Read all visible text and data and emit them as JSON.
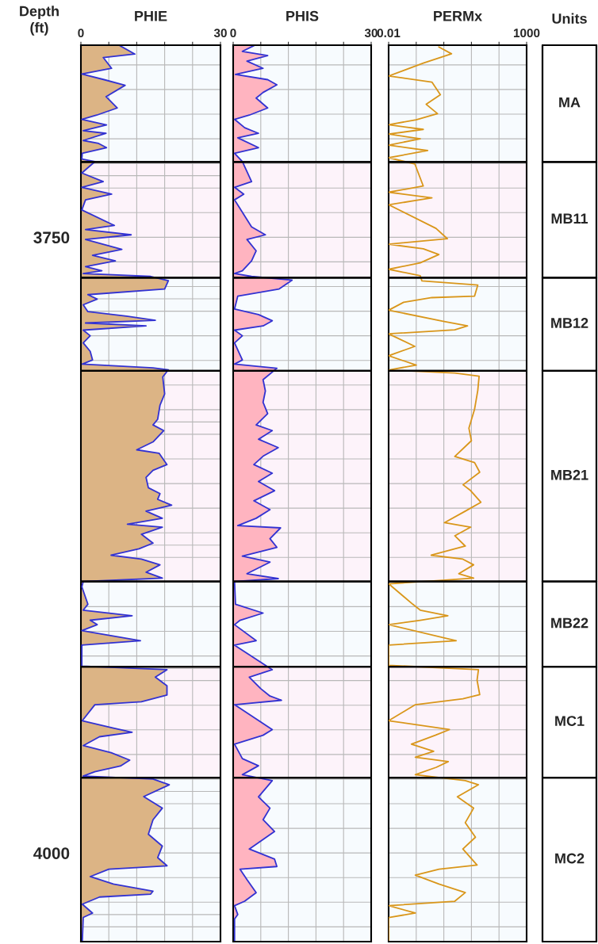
{
  "chart_data": [
    {
      "type": "area",
      "title": "PHIE",
      "ylabel": "Depth\n(ft)",
      "orientation": "horizontal",
      "xlim": [
        0,
        30
      ],
      "ylim": [
        4036,
        3672
      ],
      "grid": true,
      "xticks": [
        0,
        {
          "value": 6,
          "label": null
        },
        {
          "value": 12,
          "label": null
        },
        {
          "value": 18,
          "label": null
        },
        {
          "value": 24,
          "label": null
        },
        30
      ],
      "yticks": [
        {
          "value": 3680,
          "label": null
        },
        {
          "value": 3690,
          "label": null
        },
        {
          "value": 3700,
          "label": null
        },
        {
          "value": 3710,
          "label": null
        },
        {
          "value": 3720,
          "label": null
        },
        {
          "value": 3725,
          "label": null
        },
        {
          "value": 3730,
          "label": null
        },
        {
          "value": 3740,
          "label": null
        },
        3750,
        {
          "value": 3760,
          "label": null
        },
        {
          "value": 3770,
          "label": null
        },
        {
          "value": 3775,
          "label": null
        },
        {
          "value": 3780,
          "label": null
        },
        {
          "value": 3790,
          "label": null
        },
        {
          "value": 3800,
          "label": null
        },
        {
          "value": 3810,
          "label": null
        },
        {
          "value": 3820,
          "label": null
        },
        {
          "value": 3825,
          "label": null
        },
        {
          "value": 3830,
          "label": null
        },
        {
          "value": 3840,
          "label": null
        },
        {
          "value": 3850,
          "label": null
        },
        {
          "value": 3860,
          "label": null
        },
        {
          "value": 3870,
          "label": null
        },
        {
          "value": 3875,
          "label": null
        },
        {
          "value": 3880,
          "label": null
        },
        {
          "value": 3890,
          "label": null
        },
        {
          "value": 3900,
          "label": null
        },
        {
          "value": 3910,
          "label": null
        },
        {
          "value": 3920,
          "label": null
        },
        {
          "value": 3925,
          "label": null
        },
        {
          "value": 3930,
          "label": null
        },
        {
          "value": 3940,
          "label": null
        },
        {
          "value": 3950,
          "label": null
        },
        {
          "value": 3960,
          "label": null
        },
        {
          "value": 3970,
          "label": null
        },
        {
          "value": 3975,
          "label": null
        },
        {
          "value": 3980,
          "label": null
        },
        {
          "value": 3990,
          "label": null
        },
        4000,
        {
          "value": 4010,
          "label": null
        },
        {
          "value": 4020,
          "label": null
        },
        {
          "value": 4025,
          "label": null
        },
        {
          "value": 4030,
          "label": null
        }
      ],
      "bands": [
        {
          "axis": "y",
          "from": 3672,
          "to": 3719.4,
          "color": "#f7fbfe"
        },
        {
          "axis": "y",
          "from": 3719.4,
          "to": 3766.4,
          "color": "#fdf3fa"
        },
        {
          "axis": "y",
          "from": 3766.4,
          "to": 3804.2,
          "color": "#f7fbfe"
        },
        {
          "axis": "y",
          "from": 3804.2,
          "to": 3889.8,
          "color": "#fdf3fa"
        },
        {
          "axis": "y",
          "from": 3889.8,
          "to": 3924.4,
          "color": "#f7fbfe"
        },
        {
          "axis": "y",
          "from": 3924.4,
          "to": 3969.4,
          "color": "#fdf3fa"
        },
        {
          "axis": "y",
          "from": 3969.4,
          "to": 4036,
          "color": "#f7fbfe"
        }
      ],
      "x": [
        3672.2,
        3675.6,
        3677.0,
        3681.4,
        3683.7,
        3686.0,
        3688.3,
        3692.9,
        3697.5,
        3700.4,
        3702.1,
        3704.4,
        3706.7,
        3707.8,
        3710.7,
        3711.9,
        3713.6,
        3715.9,
        3718.2,
        3719.3,
        3723.9,
        3727.4,
        3729.7,
        3732.5,
        3734.8,
        3738.9,
        3745.2,
        3746.9,
        3749.0,
        3750.9,
        3754.9,
        3757.3,
        3759.6,
        3761.9,
        3763.6,
        3764.7,
        3765.9,
        3767.6,
        3771.0,
        3773.3,
        3775.1,
        3777.4,
        3780.2,
        3782.0,
        3783.7,
        3784.8,
        3786.0,
        3787.7,
        3790.0,
        3792.9,
        3796.3,
        3799.8,
        3801.5,
        3803.0,
        3803.8,
        3806.7,
        3813.6,
        3818.2,
        3823.9,
        3826.2,
        3828.5,
        3833.1,
        3836.3,
        3837.7,
        3842.3,
        3844.6,
        3847.5,
        3851.7,
        3854.1,
        3856.4,
        3858.8,
        3861.2,
        3864.1,
        3866.5,
        3867.7,
        3870.6,
        3874.2,
        3876.5,
        3879.1,
        3880.7,
        3883.0,
        3886.0,
        3888.4,
        3889.8,
        3891.9,
        3899.0,
        3901.4,
        3903.7,
        3905.5,
        3907.3,
        3909.7,
        3913.8,
        3915.6,
        3924.1,
        3925.6,
        3928.6,
        3932.1,
        3935.9,
        3938.6,
        3939.8,
        3946.3,
        3949.3,
        3951.0,
        3952.8,
        3956.4,
        3959.3,
        3962.3,
        3964.7,
        3967.0,
        3968.8,
        3970.0,
        3972.3,
        3977.1,
        3981.8,
        3986.5,
        3992.4,
        3997.2,
        4001.9,
        4005.2,
        4006.6,
        4009.6,
        4012.6,
        4015.5,
        4016.7,
        4017.9,
        4020.8,
        4024.4,
        4026.2,
        4036.0
      ],
      "series": [
        {
          "color": "#dcb485",
          "values": [
            8.4,
            11.6,
            4.8,
            6.6,
            0.2,
            5.0,
            9.5,
            5.4,
            7.8,
            3.4,
            0.2,
            5.5,
            0.5,
            5.4,
            0.5,
            3.8,
            5.5,
            0.3,
            0.2,
            3.0,
            0.2,
            4.8,
            0.2,
            6.6,
            1.0,
            0.2,
            7.2,
            1.0,
            10.8,
            1.0,
            8.8,
            2.5,
            7.4,
            1.0,
            4.5,
            0.5,
            15.0,
            18.8,
            18.0,
            1.5,
            3.5,
            0.5,
            1.5,
            9.8,
            16.0,
            1.0,
            14.0,
            0.5,
            2.0,
            0.5,
            2.0,
            2.5,
            0.3,
            15.5,
            18.8,
            17.6,
            18.0,
            17.0,
            16.5,
            15.5,
            17.8,
            15.5,
            12.0,
            16.8,
            18.5,
            15.5,
            14.0,
            14.5,
            17.0,
            16.5,
            19.5,
            14.0,
            17.5,
            10.0,
            17.5,
            13.0,
            15.5,
            12.5,
            6.5,
            13.0,
            17.0,
            14.0,
            17.5,
            0.5,
            0.2,
            1.5,
            0.5,
            11.0,
            2.0,
            3.5,
            0.2,
            12.8,
            0.2,
            0.2,
            18.5,
            16.0,
            18.5,
            18.5,
            13.0,
            3.0,
            0.3,
            7.0,
            11.0,
            4.0,
            0.5,
            6.5,
            10.5,
            8.5,
            3.0,
            0.5,
            15.5,
            19.0,
            13.5,
            17.5,
            15.5,
            14.5,
            17.5,
            16.5,
            18.5,
            6.0,
            2.0,
            7.0,
            15.5,
            15.0,
            4.0,
            0.3,
            2.5,
            0.5,
            0.3
          ]
        },
        {
          "type": "line",
          "color": "#3232d2",
          "values": [
            8.4,
            11.6,
            4.8,
            6.6,
            0.2,
            5.0,
            9.5,
            5.4,
            7.8,
            3.4,
            0.2,
            5.5,
            0.5,
            5.4,
            0.5,
            3.8,
            5.5,
            0.3,
            0.2,
            3.0,
            0.2,
            4.8,
            0.2,
            6.6,
            1.0,
            0.2,
            7.2,
            1.0,
            10.8,
            1.0,
            8.8,
            2.5,
            7.4,
            1.0,
            4.5,
            0.5,
            15.0,
            18.8,
            18.0,
            1.5,
            3.5,
            0.5,
            1.5,
            9.8,
            16.0,
            1.0,
            14.0,
            0.5,
            2.0,
            0.5,
            2.0,
            2.5,
            0.3,
            15.5,
            18.8,
            17.6,
            18.0,
            17.0,
            16.5,
            15.5,
            17.8,
            15.5,
            12.0,
            16.8,
            18.5,
            15.5,
            14.0,
            14.5,
            17.0,
            16.5,
            19.5,
            14.0,
            17.5,
            10.0,
            17.5,
            13.0,
            15.5,
            12.5,
            6.5,
            13.0,
            17.0,
            14.0,
            17.5,
            0.5,
            0.2,
            1.5,
            0.5,
            11.0,
            2.0,
            3.5,
            0.2,
            12.8,
            0.2,
            0.2,
            18.5,
            16.0,
            18.5,
            18.5,
            13.0,
            3.0,
            0.3,
            7.0,
            11.0,
            4.0,
            0.5,
            6.5,
            10.5,
            8.5,
            3.0,
            0.5,
            15.5,
            19.0,
            13.5,
            17.5,
            15.5,
            14.5,
            17.5,
            16.5,
            18.5,
            6.0,
            2.0,
            7.0,
            15.5,
            15.0,
            4.0,
            0.3,
            2.5,
            0.5,
            0.3
          ]
        }
      ]
    },
    {
      "type": "area",
      "title": "PHIS",
      "orientation": "horizontal",
      "xlim": [
        0,
        30
      ],
      "ylim": [
        4036,
        3672
      ],
      "grid": true,
      "tick_labels": "x",
      "xticks": [
        0,
        {
          "value": 6,
          "label": null
        },
        {
          "value": 12,
          "label": null
        },
        {
          "value": 18,
          "label": null
        },
        {
          "value": 24,
          "label": null
        },
        30
      ],
      "yticks": [
        {
          "value": 3680,
          "label": null
        },
        {
          "value": 3690,
          "label": null
        },
        {
          "value": 3700,
          "label": null
        },
        {
          "value": 3710,
          "label": null
        },
        {
          "value": 3720,
          "label": null
        },
        {
          "value": 3730,
          "label": null
        },
        {
          "value": 3740,
          "label": null
        },
        {
          "value": 3750,
          "label": null
        },
        {
          "value": 3760,
          "label": null
        },
        {
          "value": 3770,
          "label": null
        },
        {
          "value": 3780,
          "label": null
        },
        {
          "value": 3790,
          "label": null
        },
        {
          "value": 3800,
          "label": null
        },
        {
          "value": 3810,
          "label": null
        },
        {
          "value": 3820,
          "label": null
        },
        {
          "value": 3830,
          "label": null
        },
        {
          "value": 3840,
          "label": null
        },
        {
          "value": 3850,
          "label": null
        },
        {
          "value": 3860,
          "label": null
        },
        {
          "value": 3870,
          "label": null
        },
        {
          "value": 3880,
          "label": null
        },
        {
          "value": 3890,
          "label": null
        },
        {
          "value": 3900,
          "label": null
        },
        {
          "value": 3910,
          "label": null
        },
        {
          "value": 3920,
          "label": null
        },
        {
          "value": 3930,
          "label": null
        },
        {
          "value": 3940,
          "label": null
        },
        {
          "value": 3950,
          "label": null
        },
        {
          "value": 3960,
          "label": null
        },
        {
          "value": 3970,
          "label": null
        },
        {
          "value": 3980,
          "label": null
        },
        {
          "value": 3990,
          "label": null
        },
        {
          "value": 4000,
          "label": null
        },
        {
          "value": 4010,
          "label": null
        },
        {
          "value": 4020,
          "label": null
        },
        {
          "value": 4030,
          "label": null
        }
      ],
      "bands": [
        {
          "axis": "y",
          "from": 3672,
          "to": 3719.4,
          "color": "#f7fbfe"
        },
        {
          "axis": "y",
          "from": 3719.4,
          "to": 3766.4,
          "color": "#fdf3fa"
        },
        {
          "axis": "y",
          "from": 3766.4,
          "to": 3804.2,
          "color": "#f7fbfe"
        },
        {
          "axis": "y",
          "from": 3804.2,
          "to": 3889.8,
          "color": "#fdf3fa"
        },
        {
          "axis": "y",
          "from": 3889.8,
          "to": 3924.4,
          "color": "#f7fbfe"
        },
        {
          "axis": "y",
          "from": 3924.4,
          "to": 3969.4,
          "color": "#fdf3fa"
        },
        {
          "axis": "y",
          "from": 3969.4,
          "to": 4036,
          "color": "#f7fbfe"
        }
      ],
      "x": [
        3672.2,
        3674.5,
        3676.2,
        3678.5,
        3681.4,
        3683.9,
        3686.0,
        3688.1,
        3691.2,
        3693.5,
        3697.5,
        3700.4,
        3702.1,
        3705.5,
        3707.8,
        3709.6,
        3713.6,
        3715.9,
        3719.3,
        3727.4,
        3729.7,
        3732.5,
        3734.8,
        3745.8,
        3749.0,
        3750.9,
        3755.5,
        3759.6,
        3763.6,
        3764.7,
        3765.9,
        3767.4,
        3771.0,
        3773.9,
        3779.1,
        3781.4,
        3783.9,
        3786.0,
        3787.7,
        3790.0,
        3792.9,
        3799.8,
        3801.5,
        3803.2,
        3807.8,
        3812.4,
        3817.0,
        3821.6,
        3826.2,
        3828.5,
        3832.0,
        3835.4,
        3838.9,
        3842.3,
        3845.8,
        3849.2,
        3852.9,
        3857.0,
        3860.6,
        3864.1,
        3867.1,
        3868.0,
        3872.4,
        3875.9,
        3879.5,
        3881.9,
        3886.6,
        3888.6,
        3889.8,
        3899.0,
        3902.6,
        3905.5,
        3907.3,
        3913.8,
        3915.6,
        3925.6,
        3928.6,
        3933.3,
        3936.3,
        3938.0,
        3939.8,
        3949.9,
        3952.2,
        3955.8,
        3961.7,
        3964.6,
        3968.2,
        3970.6,
        3977.2,
        3981.8,
        3986.5,
        3991.3,
        3998.4,
        4002.5,
        4005.5,
        4006.6,
        4010.8,
        4016.1,
        4019.6,
        4021.4,
        4025.0,
        4026.8,
        4036.0
      ],
      "series": [
        {
          "color": "#ffb4c0",
          "values": [
            4.5,
            2.0,
            7.5,
            3.0,
            6.5,
            0.5,
            7.5,
            9.5,
            6.5,
            5.0,
            7.5,
            3.5,
            0.3,
            2.5,
            5.5,
            1.0,
            5.5,
            0.3,
            2.0,
            4.0,
            0.3,
            2.3,
            0.3,
            4.0,
            7.0,
            3.0,
            5.0,
            4.0,
            2.0,
            0.3,
            4.0,
            12.8,
            10.0,
            1.0,
            0.3,
            5.5,
            8.5,
            6.5,
            0.3,
            2.0,
            0.3,
            2.0,
            0.3,
            9.5,
            6.5,
            7.0,
            6.5,
            7.5,
            5.0,
            8.5,
            5.5,
            9.8,
            6.5,
            4.5,
            8.5,
            5.5,
            9.0,
            4.5,
            8.0,
            5.0,
            1.0,
            10.3,
            8.0,
            9.5,
            2.0,
            8.0,
            3.0,
            9.8,
            0.3,
            0.5,
            6.5,
            1.5,
            0.3,
            5.0,
            0.3,
            8.5,
            3.5,
            6.0,
            8.0,
            10.5,
            0.3,
            8.5,
            6.5,
            0.3,
            2.0,
            5.5,
            2.0,
            8.5,
            5.5,
            8.0,
            6.5,
            9.0,
            3.5,
            9.0,
            9.5,
            1.5,
            3.0,
            5.0,
            2.5,
            0.3,
            1.0,
            0.3,
            0.3
          ]
        },
        {
          "type": "line",
          "color": "#3232d2",
          "values": [
            4.5,
            2.0,
            7.5,
            3.0,
            6.5,
            0.5,
            7.5,
            9.5,
            6.5,
            5.0,
            7.5,
            3.5,
            0.3,
            2.5,
            5.5,
            1.0,
            5.5,
            0.3,
            2.0,
            4.0,
            0.3,
            2.3,
            0.3,
            4.0,
            7.0,
            3.0,
            5.0,
            4.0,
            2.0,
            0.3,
            4.0,
            12.8,
            10.0,
            1.0,
            0.3,
            5.5,
            8.5,
            6.5,
            0.3,
            2.0,
            0.3,
            2.0,
            0.3,
            9.5,
            6.5,
            7.0,
            6.5,
            7.5,
            5.0,
            8.5,
            5.5,
            9.8,
            6.5,
            4.5,
            8.5,
            5.5,
            9.0,
            4.5,
            8.0,
            5.0,
            1.0,
            10.3,
            8.0,
            9.5,
            2.0,
            8.0,
            3.0,
            9.8,
            0.3,
            0.5,
            6.5,
            1.5,
            0.3,
            5.0,
            0.3,
            8.5,
            3.5,
            6.0,
            8.0,
            10.5,
            0.3,
            8.5,
            6.5,
            0.3,
            2.0,
            5.5,
            2.0,
            8.5,
            5.5,
            8.0,
            6.5,
            9.0,
            3.5,
            9.0,
            9.5,
            1.5,
            3.0,
            5.0,
            2.5,
            0.3,
            1.0,
            0.3,
            0.3
          ]
        }
      ]
    },
    {
      "type": "line",
      "title": "PERMx",
      "y2label": "Units",
      "orientation": "horizontal",
      "log": "x",
      "xlim": [
        0.01,
        1000
      ],
      "ylim": [
        4036,
        3672
      ],
      "grid": true,
      "tick_labels": "x",
      "xticks": [
        0.01,
        {
          "value": 0.1,
          "label": null
        },
        {
          "value": 1,
          "label": null
        },
        {
          "value": 10,
          "label": null
        },
        {
          "value": 100,
          "label": null
        },
        1000
      ],
      "yticks": [
        {
          "value": 3680,
          "label": null
        },
        {
          "value": 3690,
          "label": null
        },
        {
          "value": 3700,
          "label": null
        },
        {
          "value": 3710,
          "label": null
        },
        {
          "value": 3720,
          "label": null
        },
        {
          "value": 3730,
          "label": null
        },
        {
          "value": 3740,
          "label": null
        },
        {
          "value": 3750,
          "label": null
        },
        {
          "value": 3760,
          "label": null
        },
        {
          "value": 3770,
          "label": null
        },
        {
          "value": 3780,
          "label": null
        },
        {
          "value": 3790,
          "label": null
        },
        {
          "value": 3800,
          "label": null
        },
        {
          "value": 3810,
          "label": null
        },
        {
          "value": 3820,
          "label": null
        },
        {
          "value": 3830,
          "label": null
        },
        {
          "value": 3840,
          "label": null
        },
        {
          "value": 3850,
          "label": null
        },
        {
          "value": 3860,
          "label": null
        },
        {
          "value": 3870,
          "label": null
        },
        {
          "value": 3880,
          "label": null
        },
        {
          "value": 3890,
          "label": null
        },
        {
          "value": 3900,
          "label": null
        },
        {
          "value": 3910,
          "label": null
        },
        {
          "value": 3920,
          "label": null
        },
        {
          "value": 3930,
          "label": null
        },
        {
          "value": 3940,
          "label": null
        },
        {
          "value": 3950,
          "label": null
        },
        {
          "value": 3960,
          "label": null
        },
        {
          "value": 3970,
          "label": null
        },
        {
          "value": 3980,
          "label": null
        },
        {
          "value": 3990,
          "label": null
        },
        {
          "value": 4000,
          "label": null
        },
        {
          "value": 4010,
          "label": null
        },
        {
          "value": 4020,
          "label": null
        },
        {
          "value": 4030,
          "label": null
        }
      ],
      "bands": [
        {
          "axis": "y",
          "from": 3672,
          "to": 3719.4,
          "color": "#f7fbfe",
          "label": "MA"
        },
        {
          "axis": "y",
          "from": 3719.4,
          "to": 3766.4,
          "color": "#fdf3fa",
          "label": "MB11"
        },
        {
          "axis": "y",
          "from": 3766.4,
          "to": 3804.2,
          "color": "#f7fbfe",
          "label": "MB12"
        },
        {
          "axis": "y",
          "from": 3804.2,
          "to": 3889.8,
          "color": "#fdf3fa",
          "label": "MB21"
        },
        {
          "axis": "y",
          "from": 3889.8,
          "to": 3924.4,
          "color": "#f7fbfe",
          "label": "MB22"
        },
        {
          "axis": "y",
          "from": 3924.4,
          "to": 3969.4,
          "color": "#fdf3fa",
          "label": "MC1"
        },
        {
          "axis": "y",
          "from": 3969.4,
          "to": 4036,
          "color": "#f7fbfe",
          "label": "MC2"
        }
      ],
      "x": [
        3672.7,
        3675.5,
        3679.3,
        3684.5,
        3687.0,
        3692.1,
        3696.0,
        3699.8,
        3702.3,
        3704.3,
        3706.2,
        3708.1,
        3710.0,
        3712.6,
        3714.8,
        3717.7,
        3720.2,
        3729.2,
        3731.7,
        3734.0,
        3736.8,
        3746.4,
        3750.6,
        3752.8,
        3754.7,
        3757.0,
        3760.4,
        3763.0,
        3765.6,
        3767.7,
        3769.4,
        3773.9,
        3774.5,
        3776.4,
        3779.6,
        3784.1,
        3786.0,
        3787.6,
        3789.2,
        3794.3,
        3798.1,
        3801.9,
        3803.9,
        3805.1,
        3806.4,
        3812.2,
        3819.8,
        3827.5,
        3832.6,
        3839.0,
        3841.5,
        3845.4,
        3850.5,
        3852.9,
        3857.6,
        3861.2,
        3865.9,
        3867.7,
        3871.2,
        3875.4,
        3879.1,
        3880.7,
        3883.0,
        3886.6,
        3888.4,
        3889.5,
        3890.7,
        3899.0,
        3901.4,
        3903.7,
        3905.5,
        3907.3,
        3913.8,
        3915.6,
        3923.8,
        3925.6,
        3929.8,
        3935.7,
        3937.4,
        3939.8,
        3946.3,
        3949.9,
        3952.2,
        3955.8,
        3958.7,
        3961.1,
        3962.9,
        3965.2,
        3968.2,
        3970.6,
        3972.3,
        3977.2,
        3981.8,
        3987.7,
        3993.6,
        3998.4,
        4004.9,
        4006.6,
        4009.0,
        4012.6,
        4016.1,
        4019.6,
        4021.4,
        4024.4,
        4026.2,
        4036.0
      ],
      "series": [
        {
          "color": "#d9961a",
          "values": [
            0.66,
            1.9,
            0.18,
            0.01,
            0.37,
            0.75,
            0.23,
            0.59,
            0.1,
            0.01,
            0.18,
            0.01,
            0.14,
            0.01,
            0.26,
            0.01,
            0.089,
            0.18,
            0.01,
            0.37,
            0.01,
            0.52,
            1.35,
            0.01,
            0.18,
            0.66,
            0.14,
            0.01,
            0.14,
            0.16,
            17,
            13,
            0.37,
            0.035,
            0.01,
            0.95,
            7.2,
            2.5,
            0.01,
            0.089,
            0.01,
            0.1,
            0.01,
            2.5,
            19,
            17,
            13,
            8.1,
            10,
            2.5,
            13,
            20,
            5,
            9.4,
            22,
            6,
            1.05,
            9.4,
            2.5,
            6,
            0.35,
            4.9,
            12,
            3.5,
            12,
            0.43,
            0.01,
            0.075,
            0.14,
            1.4,
            0.14,
            0.01,
            2.8,
            0.01,
            0.01,
            18,
            16,
            20,
            4.9,
            0.093,
            0.01,
            1.6,
            0.49,
            0.067,
            0.43,
            0.093,
            1.45,
            0.54,
            0.093,
            6,
            18,
            3.1,
            12,
            6,
            14,
            4.9,
            16,
            0.67,
            0.093,
            0.67,
            6,
            2.5,
            0.01,
            0.093,
            0.01,
            0.01
          ]
        }
      ]
    }
  ]
}
